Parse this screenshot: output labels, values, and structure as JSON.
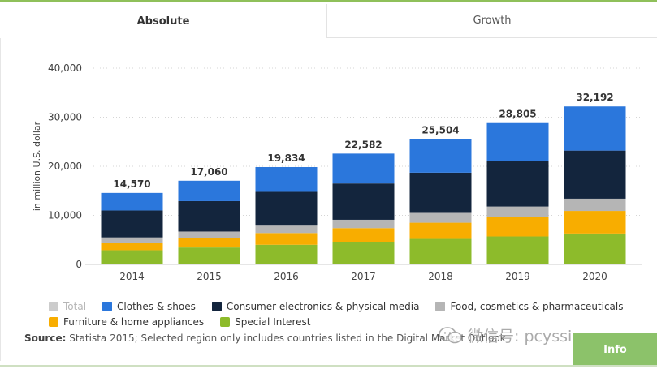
{
  "tabs": [
    {
      "label": "Absolute",
      "active": true
    },
    {
      "label": "Growth",
      "active": false
    }
  ],
  "chart_data": {
    "type": "bar",
    "stacked": true,
    "categories": [
      "2014",
      "2015",
      "2016",
      "2017",
      "2018",
      "2019",
      "2020"
    ],
    "totals": [
      "14,570",
      "17,060",
      "19,834",
      "22,582",
      "25,504",
      "28,805",
      "32,192"
    ],
    "ylabel": "in million U.S. dollar",
    "ylim": [
      0,
      40000
    ],
    "yticks": [
      0,
      10000,
      20000,
      30000,
      40000
    ],
    "ytick_labels": [
      "0",
      "10,000",
      "20,000",
      "30,000",
      "40,000"
    ],
    "grid": true,
    "legend_position": "bottom",
    "series": [
      {
        "name": "Special Interest",
        "color": "#8dbb2b",
        "values": [
          2900,
          3450,
          4000,
          4500,
          5200,
          5700,
          6300
        ]
      },
      {
        "name": "Furniture & home appliances",
        "color": "#f8ad00",
        "values": [
          1400,
          1900,
          2400,
          2900,
          3300,
          3900,
          4600
        ]
      },
      {
        "name": "Food, cosmetics & pharmaceuticals",
        "color": "#b5b5b5",
        "values": [
          1200,
          1350,
          1500,
          1700,
          2000,
          2200,
          2500
        ]
      },
      {
        "name": "Consumer electronics & physical media",
        "color": "#13253d",
        "values": [
          5500,
          6200,
          6900,
          7400,
          8200,
          9200,
          9800
        ]
      },
      {
        "name": "Clothes & shoes",
        "color": "#2b77dc",
        "values": [
          3570,
          4160,
          5034,
          6082,
          6804,
          7805,
          8992
        ]
      }
    ]
  },
  "legend": [
    {
      "label": "Total",
      "color": "#cccccc",
      "muted": true
    },
    {
      "label": "Clothes & shoes",
      "color": "#2b77dc",
      "muted": false
    },
    {
      "label": "Consumer electronics & physical media",
      "color": "#13253d",
      "muted": false
    },
    {
      "label": "Food, cosmetics & pharmaceuticals",
      "color": "#b5b5b5",
      "muted": false
    },
    {
      "label": "Furniture & home appliances",
      "color": "#f8ad00",
      "muted": false
    },
    {
      "label": "Special Interest",
      "color": "#8dbb2b",
      "muted": false
    }
  ],
  "source": {
    "label": "Source:",
    "text": "Statista 2015; Selected region only includes countries listed in the Digital Market Outlook"
  },
  "watermark": {
    "text": "微信号: pcyssion"
  },
  "info_button": {
    "label": "Info"
  }
}
